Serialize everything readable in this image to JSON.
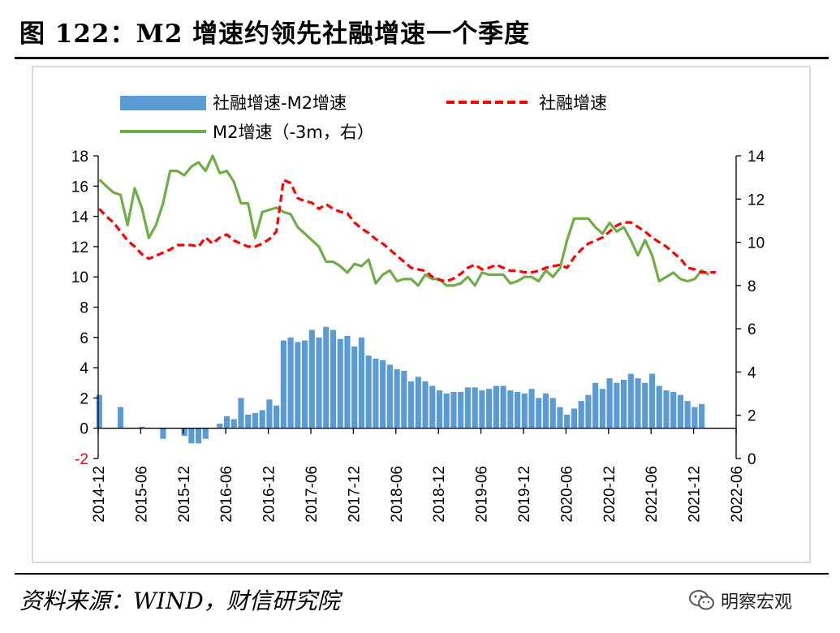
{
  "header": {
    "title": "图 122：M2 增速约领先社融增速一个季度"
  },
  "footer": {
    "source": "资料来源：WIND，财信研究院",
    "brand": "明察宏观",
    "brand_icon": "wechat-icon"
  },
  "colors": {
    "bar": "#5b9bd5",
    "line_tsf": "#ff0000",
    "line_m2": "#70ad47",
    "axis": "#000000",
    "neg_tick": "#ff0000"
  },
  "chart_data": {
    "type": "bar+line",
    "x_labels": [
      "2014-12",
      "2015-06",
      "2015-12",
      "2016-06",
      "2016-12",
      "2017-06",
      "2017-12",
      "2018-06",
      "2018-12",
      "2019-06",
      "2019-12",
      "2020-06",
      "2020-12",
      "2021-06",
      "2021-12",
      "2022-06"
    ],
    "x_start": "2014-12",
    "left_axis": {
      "ylim": [
        -2,
        18
      ],
      "ticks": [
        "-2",
        "0",
        "2",
        "4",
        "6",
        "8",
        "10",
        "12",
        "14",
        "16",
        "18"
      ]
    },
    "right_axis": {
      "ylim": [
        0,
        14
      ],
      "ticks": [
        "0",
        "2",
        "4",
        "6",
        "8",
        "10",
        "12",
        "14"
      ]
    },
    "legend": {
      "bar": "社融增速-M2增速",
      "tsf": "社融增速",
      "m2": "M2增速（-3m，右）"
    },
    "series": [
      {
        "name": "社融增速-M2增速",
        "type": "bar",
        "axis": "left",
        "values": [
          2.2,
          0,
          0,
          1.4,
          0,
          0,
          0.1,
          0,
          0,
          -0.7,
          0,
          0,
          -0.5,
          -1.0,
          -1.0,
          -0.7,
          0,
          0.3,
          0.8,
          0.6,
          2.0,
          0.9,
          1.0,
          1.2,
          1.9,
          1.5,
          5.8,
          6.0,
          5.7,
          5.8,
          6.5,
          6.0,
          6.7,
          6.5,
          5.9,
          6.1,
          5.4,
          6.0,
          4.8,
          4.6,
          4.5,
          4.2,
          3.9,
          3.8,
          3.1,
          3.4,
          3.1,
          2.8,
          2.5,
          2.3,
          2.4,
          2.4,
          2.7,
          2.7,
          2.5,
          2.6,
          2.8,
          2.8,
          2.5,
          2.4,
          2.3,
          2.6,
          2.0,
          2.3,
          2.0,
          1.4,
          0.9,
          1.3,
          1.8,
          2.2,
          3.0,
          2.6,
          3.3,
          3.0,
          3.2,
          3.6,
          3.3,
          3.0,
          3.6,
          2.8,
          2.5,
          2.4,
          2.2,
          1.8,
          1.4,
          1.6
        ]
      },
      {
        "name": "社融增速",
        "type": "line",
        "axis": "left",
        "values": [
          14.5,
          14.0,
          13.6,
          13.0,
          12.4,
          12.0,
          11.5,
          11.2,
          11.4,
          11.6,
          11.8,
          12.1,
          12.1,
          12.1,
          12.0,
          12.6,
          12.2,
          12.6,
          12.8,
          12.4,
          12.2,
          12.0,
          12.0,
          12.2,
          12.5,
          13.0,
          16.4,
          16.2,
          15.2,
          15.0,
          14.9,
          14.5,
          14.8,
          14.5,
          14.3,
          14.2,
          13.6,
          13.2,
          12.9,
          12.5,
          12.2,
          11.8,
          11.4,
          11.0,
          10.6,
          10.5,
          10.4,
          10.0,
          9.8,
          9.7,
          9.9,
          10.2,
          10.6,
          10.8,
          10.5,
          10.6,
          10.8,
          10.6,
          10.4,
          10.4,
          10.3,
          10.3,
          10.4,
          10.6,
          10.7,
          10.8,
          10.6,
          11.3,
          11.8,
          12.2,
          12.4,
          12.6,
          13.0,
          13.4,
          13.6,
          13.6,
          13.3,
          13.0,
          12.6,
          12.3,
          12.0,
          11.6,
          11.2,
          10.6,
          10.5,
          10.3,
          10.3,
          10.3
        ]
      },
      {
        "name": "M2增速（-3m，右）",
        "type": "line",
        "axis": "right",
        "values": [
          12.9,
          12.6,
          12.3,
          12.2,
          10.8,
          12.5,
          11.6,
          10.2,
          10.8,
          11.8,
          13.3,
          13.3,
          13.1,
          13.5,
          13.7,
          13.3,
          14.0,
          13.2,
          13.3,
          12.8,
          11.8,
          11.8,
          10.2,
          11.4,
          11.5,
          11.6,
          11.4,
          11.3,
          10.7,
          10.4,
          10.1,
          9.8,
          9.1,
          9.1,
          8.9,
          8.6,
          9.0,
          8.9,
          9.2,
          8.1,
          8.5,
          8.7,
          8.2,
          8.3,
          8.3,
          8.0,
          8.5,
          8.3,
          8.3,
          8.0,
          8.0,
          8.1,
          8.4,
          8.0,
          8.6,
          8.5,
          8.5,
          8.5,
          8.1,
          8.2,
          8.4,
          8.4,
          8.2,
          8.7,
          8.4,
          8.8,
          10.1,
          11.1,
          11.1,
          11.1,
          10.7,
          10.4,
          10.9,
          10.5,
          10.7,
          10.1,
          9.4,
          10.1,
          9.4,
          8.2,
          8.4,
          8.6,
          8.3,
          8.2,
          8.3,
          8.7,
          8.5
        ]
      }
    ]
  }
}
